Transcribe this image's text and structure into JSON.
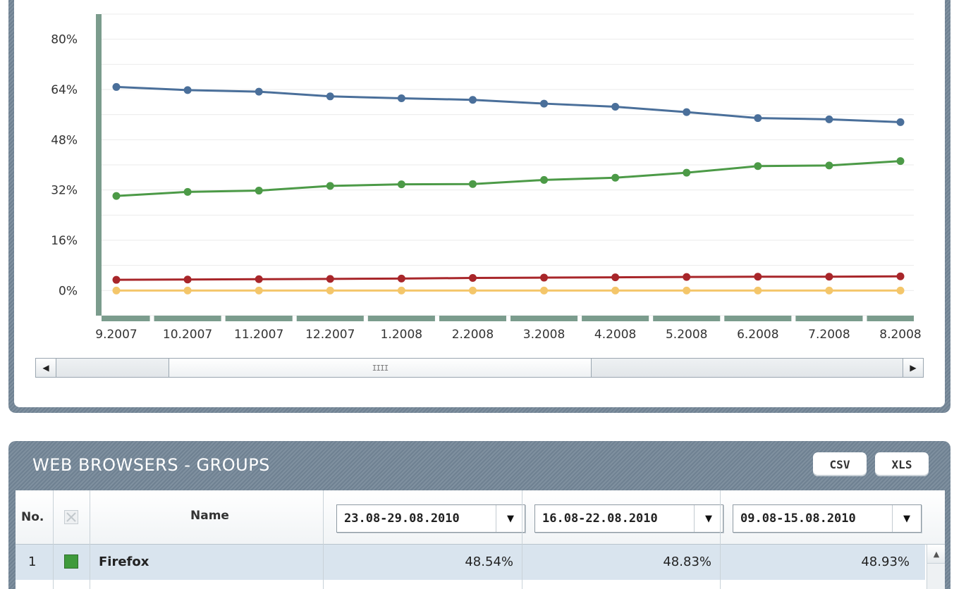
{
  "chart_data": {
    "type": "line",
    "x": [
      "9.2007",
      "10.2007",
      "11.2007",
      "12.2007",
      "1.2008",
      "2.2008",
      "3.2008",
      "4.2008",
      "5.2008",
      "6.2008",
      "7.2008",
      "8.2008"
    ],
    "y_ticks": [
      "0%",
      "16%",
      "32%",
      "48%",
      "64%",
      "80%"
    ],
    "ylim": [
      -8,
      88
    ],
    "grid": true,
    "series": [
      {
        "color": "#4a6f9a",
        "values": [
          64.8,
          63.8,
          63.3,
          61.8,
          61.2,
          60.7,
          59.5,
          58.5,
          56.8,
          54.9,
          54.5,
          53.6
        ]
      },
      {
        "color": "#4c9a47",
        "values": [
          30.1,
          31.4,
          31.8,
          33.3,
          33.8,
          33.9,
          35.2,
          35.9,
          37.5,
          39.6,
          39.8,
          41.2
        ]
      },
      {
        "color": "#a8262a",
        "values": [
          3.4,
          3.5,
          3.6,
          3.7,
          3.8,
          4.0,
          4.1,
          4.2,
          4.3,
          4.4,
          4.4,
          4.5
        ]
      },
      {
        "color": "#f4c66a",
        "values": [
          0.0,
          0.0,
          0.0,
          0.0,
          0.0,
          0.0,
          0.0,
          0.0,
          0.0,
          0.0,
          0.0,
          0.0
        ]
      }
    ]
  },
  "scrollbar": {
    "left_arrow": "◀",
    "right_arrow": "▶",
    "grip": "IIII"
  },
  "table_panel": {
    "title": "WEB BROWSERS - GROUPS",
    "csv_label": "CSV",
    "xls_label": "XLS",
    "headers": {
      "no": "No.",
      "name": "Name"
    },
    "periods": [
      "23.08-29.08.2010",
      "16.08-22.08.2010",
      "09.08-15.08.2010"
    ],
    "dropdown_arrow": "▼",
    "rows": [
      {
        "no": "1",
        "color": "#3f9a3c",
        "name": "Firefox",
        "values": [
          "48.54%",
          "48.83%",
          "48.93%"
        ]
      }
    ],
    "scroll_up": "▲"
  }
}
